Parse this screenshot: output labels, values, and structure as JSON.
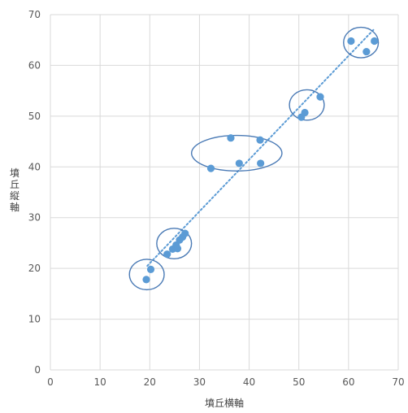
{
  "chart_data": {
    "type": "scatter",
    "title": "",
    "xlabel": "墳丘横軸",
    "ylabel": "墳丘縦軸",
    "xlim": [
      0,
      70
    ],
    "ylim": [
      0,
      70
    ],
    "xticks": [
      "0",
      "10",
      "20",
      "30",
      "40",
      "50",
      "60",
      "70"
    ],
    "yticks": [
      "0",
      "10",
      "20",
      "30",
      "40",
      "50",
      "60",
      "70"
    ],
    "grid": true,
    "legend": "none",
    "marker_color": "#5b9bd5",
    "trendline": {
      "style": "dotted",
      "color": "#5b9bd5",
      "from": [
        19.5,
        20.5
      ],
      "to": [
        65,
        67
      ]
    },
    "series": [
      {
        "points": [
          {
            "x": 19.3,
            "y": 17.8
          },
          {
            "x": 20.2,
            "y": 19.8
          },
          {
            "x": 23.5,
            "y": 22.8
          },
          {
            "x": 24.6,
            "y": 23.8
          },
          {
            "x": 25.3,
            "y": 24.6
          },
          {
            "x": 25.6,
            "y": 23.9
          },
          {
            "x": 26.0,
            "y": 25.6
          },
          {
            "x": 26.6,
            "y": 26.2
          },
          {
            "x": 27.1,
            "y": 26.9
          },
          {
            "x": 32.3,
            "y": 39.7
          },
          {
            "x": 36.3,
            "y": 45.7
          },
          {
            "x": 38.0,
            "y": 40.7
          },
          {
            "x": 42.2,
            "y": 45.3
          },
          {
            "x": 42.3,
            "y": 40.7
          },
          {
            "x": 50.5,
            "y": 49.8
          },
          {
            "x": 51.2,
            "y": 50.7
          },
          {
            "x": 54.3,
            "y": 53.8
          },
          {
            "x": 60.5,
            "y": 64.8
          },
          {
            "x": 63.6,
            "y": 62.7
          },
          {
            "x": 65.2,
            "y": 64.8
          }
        ]
      }
    ],
    "annotations": [
      {
        "shape": "ellipse",
        "center": [
          19.4,
          18.8
        ],
        "radius_units": [
          3.5,
          3.0
        ]
      },
      {
        "shape": "ellipse",
        "center": [
          24.9,
          24.9
        ],
        "radius_units": [
          3.5,
          3.0
        ]
      },
      {
        "shape": "ellipse",
        "center": [
          37.5,
          42.7
        ],
        "radius_units": [
          9.1,
          3.5
        ]
      },
      {
        "shape": "ellipse",
        "center": [
          51.6,
          52.2
        ],
        "radius_units": [
          3.5,
          3.0
        ]
      },
      {
        "shape": "ellipse",
        "center": [
          62.5,
          64.5
        ],
        "radius_units": [
          3.5,
          3.0
        ]
      }
    ]
  }
}
